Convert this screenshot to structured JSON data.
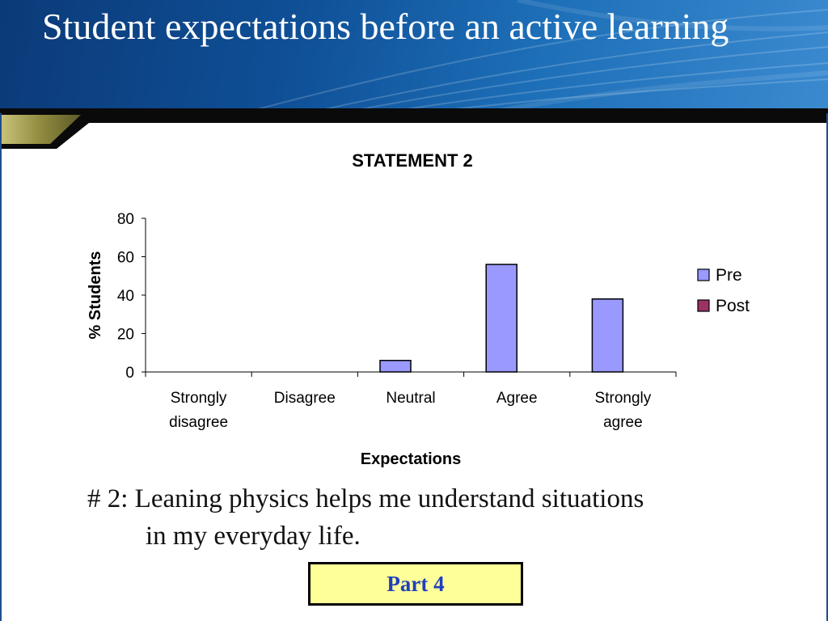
{
  "slide": {
    "title": "Student expectations before an active learning",
    "caption_line1": "# 2: Leaning physics helps me understand situations",
    "caption_line2": "in my everyday life.",
    "part_label": "Part 4"
  },
  "colors": {
    "header_blue": "#0f4f96",
    "pre": "#9999ff",
    "post": "#993366",
    "part_box_fill": "#ffff99",
    "part_text": "#1f3fbf"
  },
  "chart_data": {
    "type": "bar",
    "title": "STATEMENT 2",
    "xlabel": "Expectations",
    "ylabel": "% Students",
    "categories": [
      [
        "Strongly",
        "disagree"
      ],
      [
        "Disagree"
      ],
      [
        "Neutral"
      ],
      [
        "Agree"
      ],
      [
        "Strongly",
        "agree"
      ]
    ],
    "series": [
      {
        "name": "Pre",
        "color": "#9999ff",
        "values": [
          0,
          0,
          6,
          56,
          38
        ]
      },
      {
        "name": "Post",
        "color": "#993366",
        "values": [
          0,
          0,
          0,
          0,
          0
        ]
      }
    ],
    "ylim": [
      0,
      80
    ],
    "yticks": [
      0,
      20,
      40,
      60,
      80
    ],
    "grid": false,
    "legend": "right"
  }
}
